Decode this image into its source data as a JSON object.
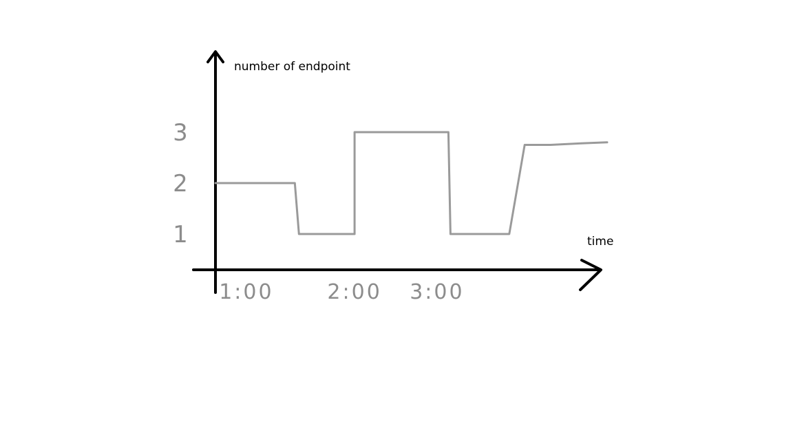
{
  "chart_data": {
    "type": "line",
    "step": true,
    "title": "",
    "xlabel": "time",
    "ylabel": "number of endpoint",
    "x_ticks": [
      "1:00",
      "2:00",
      "3:00"
    ],
    "y_ticks": [
      "1",
      "2",
      "3"
    ],
    "ylim": [
      0,
      3.5
    ],
    "xlim": [
      0.95,
      4.75
    ],
    "grid": false,
    "legend": "none",
    "series": [
      {
        "x": [
          0.95,
          1.72,
          1.76,
          2.0,
          2.3,
          2.3,
          2.8,
          2.93,
          3.21,
          3.23,
          3.5,
          3.6,
          3.8,
          3.95,
          4.2,
          4.5,
          4.75
        ],
        "y": [
          2.0,
          2.0,
          1.0,
          1.0,
          1.0,
          3.0,
          3.0,
          3.0,
          3.0,
          1.0,
          1.0,
          1.0,
          1.0,
          2.75,
          2.75,
          2.78,
          2.8
        ]
      }
    ],
    "colors": {
      "axis": "#000000",
      "series": "#9a9a9a",
      "tick_text": "#8c8c8c"
    }
  }
}
